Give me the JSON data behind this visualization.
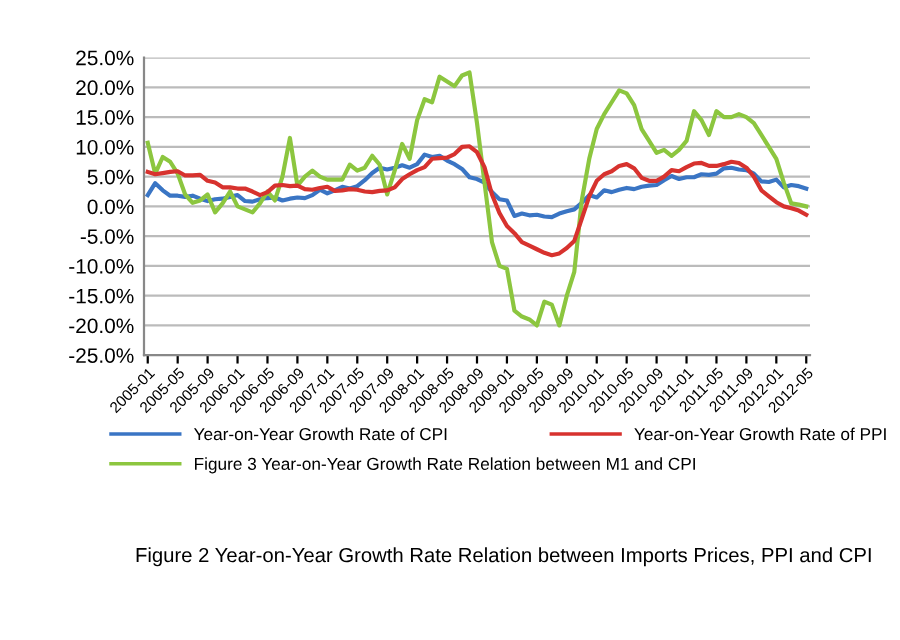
{
  "chart_data": {
    "type": "line",
    "categories": [
      "2005-01",
      null,
      null,
      null,
      "2005-05",
      null,
      null,
      null,
      "2005-09",
      null,
      null,
      null,
      "2006-01",
      null,
      null,
      null,
      "2006-05",
      null,
      null,
      null,
      "2006-09",
      null,
      null,
      null,
      "2007-01",
      null,
      null,
      null,
      "2007-05",
      null,
      null,
      null,
      "2007-09",
      null,
      null,
      null,
      "2008-01",
      null,
      null,
      null,
      "2008-05",
      null,
      null,
      null,
      "2008-09",
      null,
      null,
      null,
      "2009-01",
      null,
      null,
      null,
      "2009-05",
      null,
      null,
      null,
      "2009-09",
      null,
      null,
      null,
      "2010-01",
      null,
      null,
      null,
      "2010-05",
      null,
      null,
      null,
      "2010-09",
      null,
      null,
      null,
      "2011-01",
      null,
      null,
      null,
      "2011-05",
      null,
      null,
      null,
      "2011-09",
      null,
      null,
      null,
      "2012-01",
      null,
      null,
      null,
      "2012-05"
    ],
    "series": [
      {
        "name": "Year-on-Year Growth Rate of CPI",
        "color": "#3a75c4",
        "values": [
          1.9,
          3.9,
          2.7,
          1.8,
          1.8,
          1.6,
          1.8,
          1.3,
          0.9,
          1.2,
          1.3,
          1.6,
          1.9,
          0.9,
          0.8,
          1.2,
          1.4,
          1.5,
          1.0,
          1.3,
          1.5,
          1.4,
          1.9,
          2.8,
          2.2,
          2.7,
          3.3,
          3.0,
          3.4,
          4.4,
          5.6,
          6.5,
          6.2,
          6.5,
          6.9,
          6.5,
          7.1,
          8.7,
          8.3,
          8.5,
          7.7,
          7.1,
          6.3,
          4.9,
          4.6,
          4.0,
          2.4,
          1.2,
          1.0,
          -1.6,
          -1.2,
          -1.5,
          -1.4,
          -1.7,
          -1.8,
          -1.2,
          -0.8,
          -0.5,
          0.6,
          1.9,
          1.5,
          2.7,
          2.4,
          2.8,
          3.1,
          2.9,
          3.3,
          3.5,
          3.6,
          4.4,
          5.1,
          4.6,
          4.9,
          4.9,
          5.4,
          5.3,
          5.5,
          6.4,
          6.5,
          6.2,
          6.1,
          5.5,
          4.2,
          4.1,
          4.5,
          3.2,
          3.6,
          3.4,
          3.0
        ]
      },
      {
        "name": "Figure 3 Year-on-Year Growth Rate Relation between M1 and CPI",
        "color": "#8cc63f",
        "values": [
          10.7,
          5.5,
          8.3,
          7.5,
          5.5,
          2.0,
          0.6,
          1.0,
          2.0,
          -1.0,
          0.5,
          2.5,
          0.0,
          -0.5,
          -1.0,
          0.5,
          2.5,
          1.0,
          5.0,
          11.5,
          3.5,
          5.0,
          6.0,
          5.0,
          4.5,
          4.5,
          4.5,
          7.0,
          6.0,
          6.5,
          8.5,
          7.0,
          2.0,
          6.0,
          10.5,
          8.0,
          14.5,
          18.0,
          17.5,
          21.8,
          21.0,
          20.2,
          22.0,
          22.5,
          14.0,
          4.0,
          -6.0,
          -10.0,
          -10.5,
          -17.5,
          -18.5,
          -19.0,
          -20.0,
          -16.0,
          -16.5,
          -20.0,
          -15.0,
          -11.0,
          1.0,
          8.0,
          13.0,
          15.5,
          17.5,
          19.5,
          19.0,
          17.0,
          13.0,
          11.0,
          9.0,
          9.5,
          8.5,
          9.5,
          11.0,
          16.0,
          14.5,
          12.0,
          16.0,
          15.0,
          15.0,
          15.5,
          15.0,
          14.0,
          12.0,
          10.0,
          8.0,
          4.0,
          0.5,
          0.3,
          0.0
        ]
      },
      {
        "name": "Year-on-Year Growth Rate of PPI",
        "color": "#d7322e",
        "values": [
          5.8,
          5.4,
          5.6,
          5.8,
          5.9,
          5.2,
          5.2,
          5.3,
          4.3,
          4.0,
          3.2,
          3.2,
          3.0,
          3.0,
          2.5,
          1.9,
          2.4,
          3.5,
          3.6,
          3.4,
          3.5,
          2.9,
          2.8,
          3.1,
          3.3,
          2.6,
          2.7,
          2.9,
          2.8,
          2.5,
          2.4,
          2.6,
          2.7,
          3.2,
          4.6,
          5.4,
          6.1,
          6.6,
          8.0,
          8.1,
          8.2,
          8.8,
          10.0,
          10.1,
          9.1,
          6.6,
          2.0,
          -1.1,
          -3.3,
          -4.5,
          -6.0,
          -6.6,
          -7.2,
          -7.8,
          -8.2,
          -7.9,
          -7.0,
          -5.8,
          -2.1,
          1.7,
          4.3,
          5.4,
          5.9,
          6.8,
          7.1,
          6.4,
          4.8,
          4.3,
          4.3,
          5.0,
          6.1,
          5.9,
          6.6,
          7.2,
          7.3,
          6.8,
          6.8,
          7.1,
          7.5,
          7.3,
          6.5,
          5.0,
          2.7,
          1.7,
          0.7,
          0.0,
          -0.3,
          -0.7,
          -1.4
        ]
      }
    ],
    "ylim": [
      -25,
      25
    ],
    "yticks": [
      {
        "value": -25,
        "label": "-25.0%"
      },
      {
        "value": -20,
        "label": "-20.0%"
      },
      {
        "value": -15,
        "label": "-15.0%"
      },
      {
        "value": -10,
        "label": "-10.0%"
      },
      {
        "value": -5,
        "label": "-5.0%"
      },
      {
        "value": 0,
        "label": "0.0%"
      },
      {
        "value": 5,
        "label": "5.0%"
      },
      {
        "value": 10,
        "label": "10.0%"
      },
      {
        "value": 15,
        "label": "15.0%"
      },
      {
        "value": 20,
        "label": "20.0%"
      },
      {
        "value": 25,
        "label": "25.0%"
      }
    ],
    "grid": "y",
    "legend": "bottom",
    "marker": "none",
    "line_style": "solid",
    "annotations": [
      "Figure 2 Year-on-Year Growth Rate Relation between Imports Prices, PPI and CPI"
    ]
  }
}
